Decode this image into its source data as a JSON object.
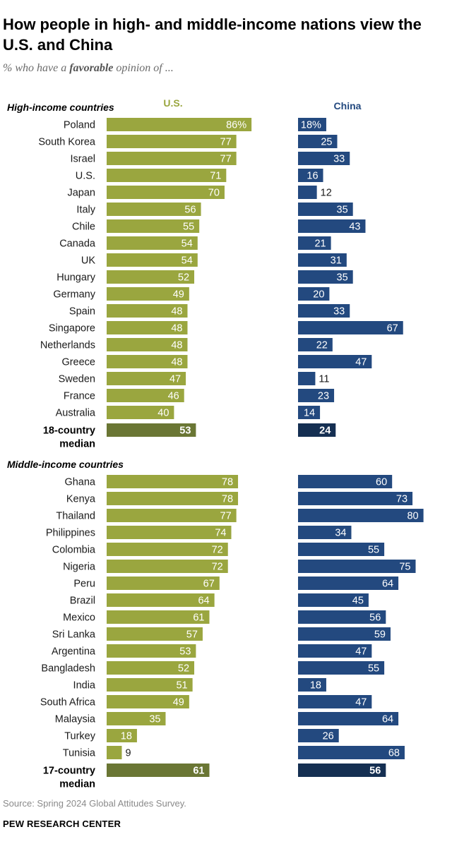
{
  "header": {
    "title": "How people in high- and middle-income nations view the U.S. and China",
    "subtitle_pre": "% who have a ",
    "subtitle_em": "favorable",
    "subtitle_post": " opinion of ..."
  },
  "footer": {
    "source": "Source: Spring 2024 Global Attitudes Survey.",
    "brand": "PEW RESEARCH CENTER"
  },
  "colors": {
    "us_bar": "#9aa63f",
    "us_median": "#6a7634",
    "china_bar": "#23497f",
    "china_median": "#152f52",
    "us_header": "#9aa63f",
    "china_header": "#23497f"
  },
  "chart_data": {
    "type": "bar",
    "orientation": "horizontal",
    "series": [
      {
        "name": "U.S."
      },
      {
        "name": "China"
      }
    ],
    "groups": [
      {
        "label": "High-income countries",
        "countries": [
          "Poland",
          "South Korea",
          "Israel",
          "U.S.",
          "Japan",
          "Italy",
          "Chile",
          "Canada",
          "UK",
          "Hungary",
          "Germany",
          "Spain",
          "Singapore",
          "Netherlands",
          "Greece",
          "Sweden",
          "France",
          "Australia"
        ],
        "us": [
          86,
          77,
          77,
          71,
          70,
          56,
          55,
          54,
          54,
          52,
          49,
          48,
          48,
          48,
          48,
          47,
          46,
          40
        ],
        "china": [
          18,
          25,
          33,
          16,
          12,
          35,
          43,
          21,
          31,
          35,
          20,
          33,
          67,
          22,
          47,
          11,
          23,
          14
        ],
        "first_value_suffix": "%",
        "median_label": [
          "18-country",
          "median"
        ],
        "median_us": 53,
        "median_china": 24
      },
      {
        "label": "Middle-income countries",
        "countries": [
          "Ghana",
          "Kenya",
          "Thailand",
          "Philippines",
          "Colombia",
          "Nigeria",
          "Peru",
          "Brazil",
          "Mexico",
          "Sri Lanka",
          "Argentina",
          "Bangladesh",
          "India",
          "South Africa",
          "Malaysia",
          "Turkey",
          "Tunisia"
        ],
        "us": [
          78,
          78,
          77,
          74,
          72,
          72,
          67,
          64,
          61,
          57,
          53,
          52,
          51,
          49,
          35,
          18,
          9
        ],
        "china": [
          60,
          73,
          80,
          34,
          55,
          75,
          64,
          45,
          56,
          59,
          47,
          55,
          18,
          47,
          64,
          26,
          68
        ],
        "median_label": [
          "17-country",
          "median"
        ],
        "median_us": 61,
        "median_china": 56
      }
    ],
    "xlim": [
      0,
      100
    ]
  }
}
